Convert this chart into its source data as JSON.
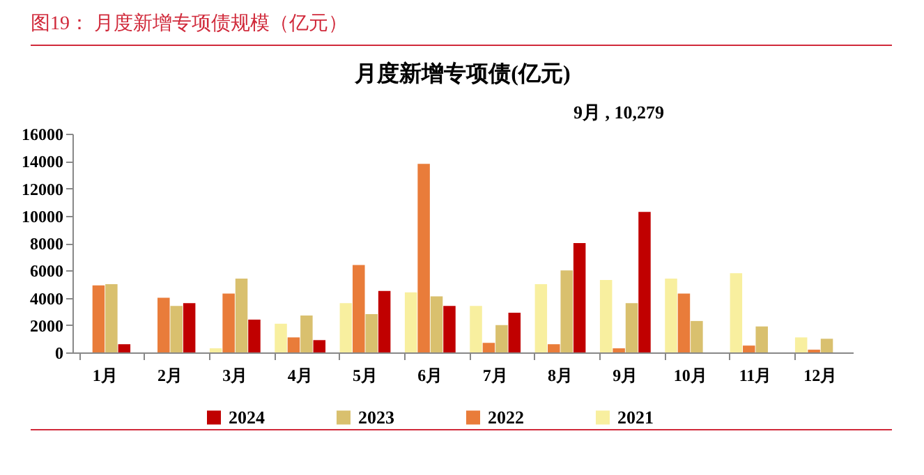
{
  "chart_data": {
    "type": "bar",
    "title": "图19：  月度新增专项债规模（亿元）",
    "subtitle": "月度新增专项债(亿元)",
    "categories": [
      "1月",
      "2月",
      "3月",
      "4月",
      "5月",
      "6月",
      "7月",
      "8月",
      "9月",
      "10月",
      "11月",
      "12月"
    ],
    "series": [
      {
        "name": "2024",
        "color": "#c00000",
        "values": [
          600,
          3600,
          2400,
          900,
          4500,
          3400,
          2900,
          8000,
          10279,
          null,
          null,
          null
        ]
      },
      {
        "name": "2023",
        "color": "#d9c06e",
        "values": [
          5000,
          3400,
          5400,
          2700,
          2800,
          4100,
          2000,
          6000,
          3600,
          2300,
          1900,
          1000
        ]
      },
      {
        "name": "2022",
        "color": "#e97c3a",
        "values": [
          4900,
          4000,
          4300,
          1100,
          6400,
          13800,
          700,
          600,
          300,
          4300,
          500,
          200
        ]
      },
      {
        "name": "2021",
        "color": "#f8ef9f",
        "values": [
          null,
          null,
          300,
          2100,
          3600,
          4400,
          3400,
          5000,
          5300,
          5400,
          5800,
          1100
        ]
      }
    ],
    "ylim": [
      0,
      16000
    ],
    "yticks": [
      0,
      2000,
      4000,
      6000,
      8000,
      10000,
      12000,
      14000,
      16000
    ],
    "annotations": [
      "9月 , 10,279"
    ],
    "grid": false,
    "legend": "bottom"
  }
}
